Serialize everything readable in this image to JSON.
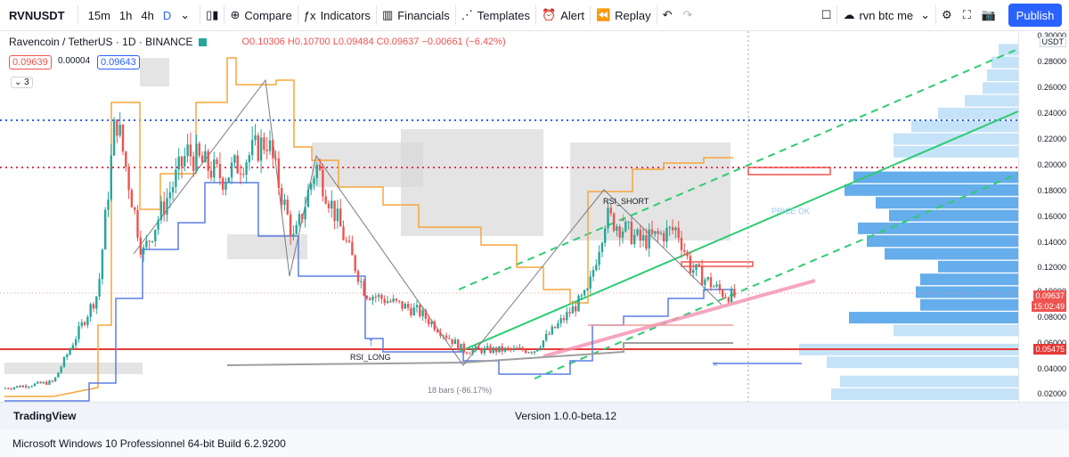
{
  "toolbar": {
    "symbol": "RVNUSDT",
    "timeframes": [
      "15m",
      "1h",
      "4h",
      "D"
    ],
    "active_timeframe": "D",
    "compare": "Compare",
    "indicators": "Indicators",
    "financials": "Financials",
    "templates": "Templates",
    "alert": "Alert",
    "replay": "Replay",
    "layout_name": "rvn btc me",
    "publish": "Publish"
  },
  "legend": {
    "title": "Ravencoin / TetherUS · 1D · BINANCE",
    "open": "O0.10306",
    "high": "H0.10700",
    "low": "L0.09484",
    "close": "C0.09637",
    "change": "−0.00661 (−6.42%)",
    "bid": "0.09639",
    "spread": "0.00004",
    "ask": "0.09643",
    "indicators_count": "3"
  },
  "axis": {
    "currency": "USDT",
    "ticks": [
      "0.30000",
      "0.28000",
      "0.26000",
      "0.24000",
      "0.22000",
      "0.20000",
      "0.18000",
      "0.16000",
      "0.14000",
      "0.12000",
      "0.10000",
      "0.08000",
      "0.06000",
      "0.04000",
      "0.02000"
    ],
    "last_price": "0.09637",
    "countdown": "15:02:49",
    "line_price": "0.05475"
  },
  "annotations": {
    "rsi_short": "RSI_SHORT",
    "rsi_long": "RSI_LONG",
    "price_ok": "PRICE OK",
    "bars_range": "18 bars (-86.17%)"
  },
  "colors": {
    "accent": "#2962ff",
    "up": "#26a69a",
    "down": "#ef5350",
    "orange_line": "#f7a53b",
    "blue_line": "#5b7ee5",
    "green_channel": "#2ecc71",
    "red_line": "#e53935",
    "pink_line": "#f48fb1"
  },
  "status": {
    "app": "TradingView",
    "version": "Version 1.0.0-beta.12"
  },
  "footer": {
    "os": "Microsoft Windows 10 Professionnel 64-bit Build 6.2.9200"
  }
}
